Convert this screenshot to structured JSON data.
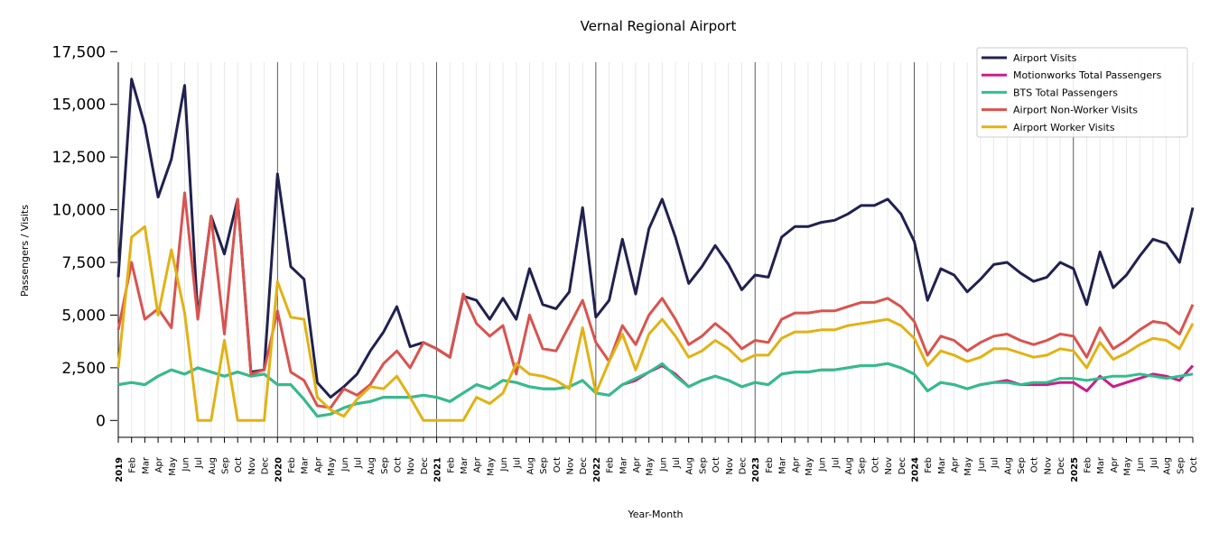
{
  "chart_data": {
    "type": "line",
    "title": "Vernal Regional Airport",
    "x_label": "Year-Month",
    "y_label": "Passengers / Visits",
    "categories": [
      "2019",
      "Feb",
      "Mar",
      "Apr",
      "May",
      "Jun",
      "Jul",
      "Aug",
      "Sep",
      "Oct",
      "Nov",
      "Dec",
      "2020",
      "Feb",
      "Mar",
      "Apr",
      "May",
      "Jun",
      "Jul",
      "Aug",
      "Sep",
      "Oct",
      "Nov",
      "Dec",
      "2021",
      "Feb",
      "Mar",
      "Apr",
      "May",
      "Jun",
      "Jul",
      "Aug",
      "Sep",
      "Oct",
      "Nov",
      "Dec",
      "2022",
      "Feb",
      "Mar",
      "Apr",
      "May",
      "Jun",
      "Jul",
      "Aug",
      "Sep",
      "Oct",
      "Nov",
      "Dec",
      "2023",
      "Feb",
      "Mar",
      "Apr",
      "May",
      "Jun",
      "Jul",
      "Aug",
      "Sep",
      "Oct",
      "Nov",
      "Dec",
      "2024",
      "Feb",
      "Mar",
      "Apr",
      "May",
      "Jun",
      "Jul",
      "Aug",
      "Sep",
      "Oct",
      "Nov",
      "Dec",
      "2025",
      "Feb",
      "Mar",
      "Apr",
      "May",
      "Jun",
      "Jul",
      "Aug",
      "Sep",
      "Oct"
    ],
    "series": [
      {
        "name": "Airport Visits",
        "color": "#20214f",
        "values": [
          6800,
          16200,
          14000,
          10600,
          12400,
          15900,
          4900,
          9700,
          7900,
          10500,
          2300,
          2400,
          11700,
          7300,
          6700,
          1800,
          1100,
          1600,
          2200,
          3300,
          4200,
          5400,
          3500,
          3700,
          3400,
          3000,
          5900,
          5700,
          4800,
          5800,
          4800,
          7200,
          5500,
          5300,
          6100,
          10100,
          4900,
          5700,
          8600,
          6000,
          9100,
          10500,
          8700,
          6500,
          7300,
          8300,
          7400,
          6200,
          6900,
          6800,
          8700,
          9200,
          9200,
          9400,
          9500,
          9800,
          10200,
          10200,
          10500,
          9800,
          8500,
          5700,
          7200,
          6900,
          6100,
          6700,
          7400,
          7500,
          7000,
          6600,
          6800,
          7500,
          7200,
          5500,
          8000,
          6300,
          6900,
          7800,
          8600,
          8400,
          7500,
          10100
        ]
      },
      {
        "name": "Motionworks Total Passengers",
        "color": "#c81e8c",
        "values": [
          1700,
          1800,
          1700,
          2100,
          2400,
          2200,
          2500,
          2300,
          2100,
          2300,
          2100,
          2200,
          1700,
          1700,
          1000,
          200,
          300,
          600,
          800,
          900,
          1100,
          1100,
          1100,
          1200,
          1100,
          900,
          1300,
          1700,
          1500,
          1900,
          1800,
          1600,
          1500,
          1500,
          1600,
          1900,
          1300,
          1200,
          1700,
          1900,
          2300,
          2600,
          2200,
          1600,
          1900,
          2100,
          1900,
          1600,
          1800,
          1700,
          2200,
          2300,
          2300,
          2400,
          2400,
          2500,
          2600,
          2600,
          2700,
          2500,
          2200,
          1400,
          1800,
          1700,
          1500,
          1700,
          1800,
          1900,
          1700,
          1700,
          1700,
          1800,
          1800,
          1400,
          2100,
          1600,
          1800,
          2000,
          2200,
          2100,
          1900,
          2600
        ]
      },
      {
        "name": "BTS Total Passengers",
        "color": "#2ec08b",
        "values": [
          1700,
          1800,
          1700,
          2100,
          2400,
          2200,
          2500,
          2300,
          2100,
          2300,
          2100,
          2200,
          1700,
          1700,
          1000,
          200,
          300,
          600,
          800,
          900,
          1100,
          1100,
          1100,
          1200,
          1100,
          900,
          1300,
          1700,
          1500,
          1900,
          1800,
          1600,
          1500,
          1500,
          1600,
          1900,
          1300,
          1200,
          1700,
          2000,
          2300,
          2700,
          2100,
          1600,
          1900,
          2100,
          1900,
          1600,
          1800,
          1700,
          2200,
          2300,
          2300,
          2400,
          2400,
          2500,
          2600,
          2600,
          2700,
          2500,
          2200,
          1400,
          1800,
          1700,
          1500,
          1700,
          1800,
          1800,
          1700,
          1800,
          1800,
          2000,
          2000,
          1900,
          2000,
          2100,
          2100,
          2200,
          2100,
          2000,
          2100,
          2200
        ]
      },
      {
        "name": "Airport Non-Worker Visits",
        "color": "#d9534f",
        "values": [
          4300,
          7500,
          4800,
          5300,
          4400,
          10800,
          4800,
          9700,
          4100,
          10500,
          2200,
          2400,
          5200,
          2300,
          1900,
          700,
          600,
          1500,
          1200,
          1700,
          2700,
          3300,
          2500,
          3700,
          3400,
          3000,
          6000,
          4600,
          4000,
          4500,
          2200,
          5000,
          3400,
          3300,
          4500,
          5700,
          3700,
          2800,
          4500,
          3600,
          5000,
          5800,
          4800,
          3600,
          4000,
          4600,
          4100,
          3400,
          3800,
          3700,
          4800,
          5100,
          5100,
          5200,
          5200,
          5400,
          5600,
          5600,
          5800,
          5400,
          4700,
          3100,
          4000,
          3800,
          3300,
          3700,
          4000,
          4100,
          3800,
          3600,
          3800,
          4100,
          4000,
          3000,
          4400,
          3400,
          3800,
          4300,
          4700,
          4600,
          4100,
          5500
        ]
      },
      {
        "name": "Airport Worker Visits",
        "color": "#e2b214",
        "values": [
          2500,
          8700,
          9200,
          5000,
          8100,
          5100,
          0,
          0,
          3800,
          0,
          0,
          0,
          6600,
          4900,
          4800,
          1100,
          500,
          200,
          1000,
          1600,
          1500,
          2100,
          1100,
          0,
          0,
          0,
          0,
          1100,
          800,
          1300,
          2700,
          2200,
          2100,
          1900,
          1500,
          4400,
          1300,
          2800,
          4100,
          2400,
          4100,
          4800,
          4000,
          3000,
          3300,
          3800,
          3400,
          2800,
          3100,
          3100,
          3900,
          4200,
          4200,
          4300,
          4300,
          4500,
          4600,
          4700,
          4800,
          4500,
          3900,
          2600,
          3300,
          3100,
          2800,
          3000,
          3400,
          3400,
          3200,
          3000,
          3100,
          3400,
          3300,
          2500,
          3700,
          2900,
          3200,
          3600,
          3900,
          3800,
          3400,
          4600
        ]
      }
    ],
    "ylim": [
      -800,
      17000
    ],
    "yticks": [
      0,
      {
        "value": 2500,
        "label": "2,500"
      },
      {
        "value": 5000,
        "label": "5,000"
      },
      {
        "value": 7500,
        "label": "7,500"
      },
      {
        "value": 10000,
        "label": "10,000"
      },
      {
        "value": 12500,
        "label": "12,500"
      },
      {
        "value": 15000,
        "label": "15,000"
      },
      {
        "value": 17500,
        "label": "17,500"
      }
    ],
    "x_grid": true,
    "legend": "upper right"
  }
}
